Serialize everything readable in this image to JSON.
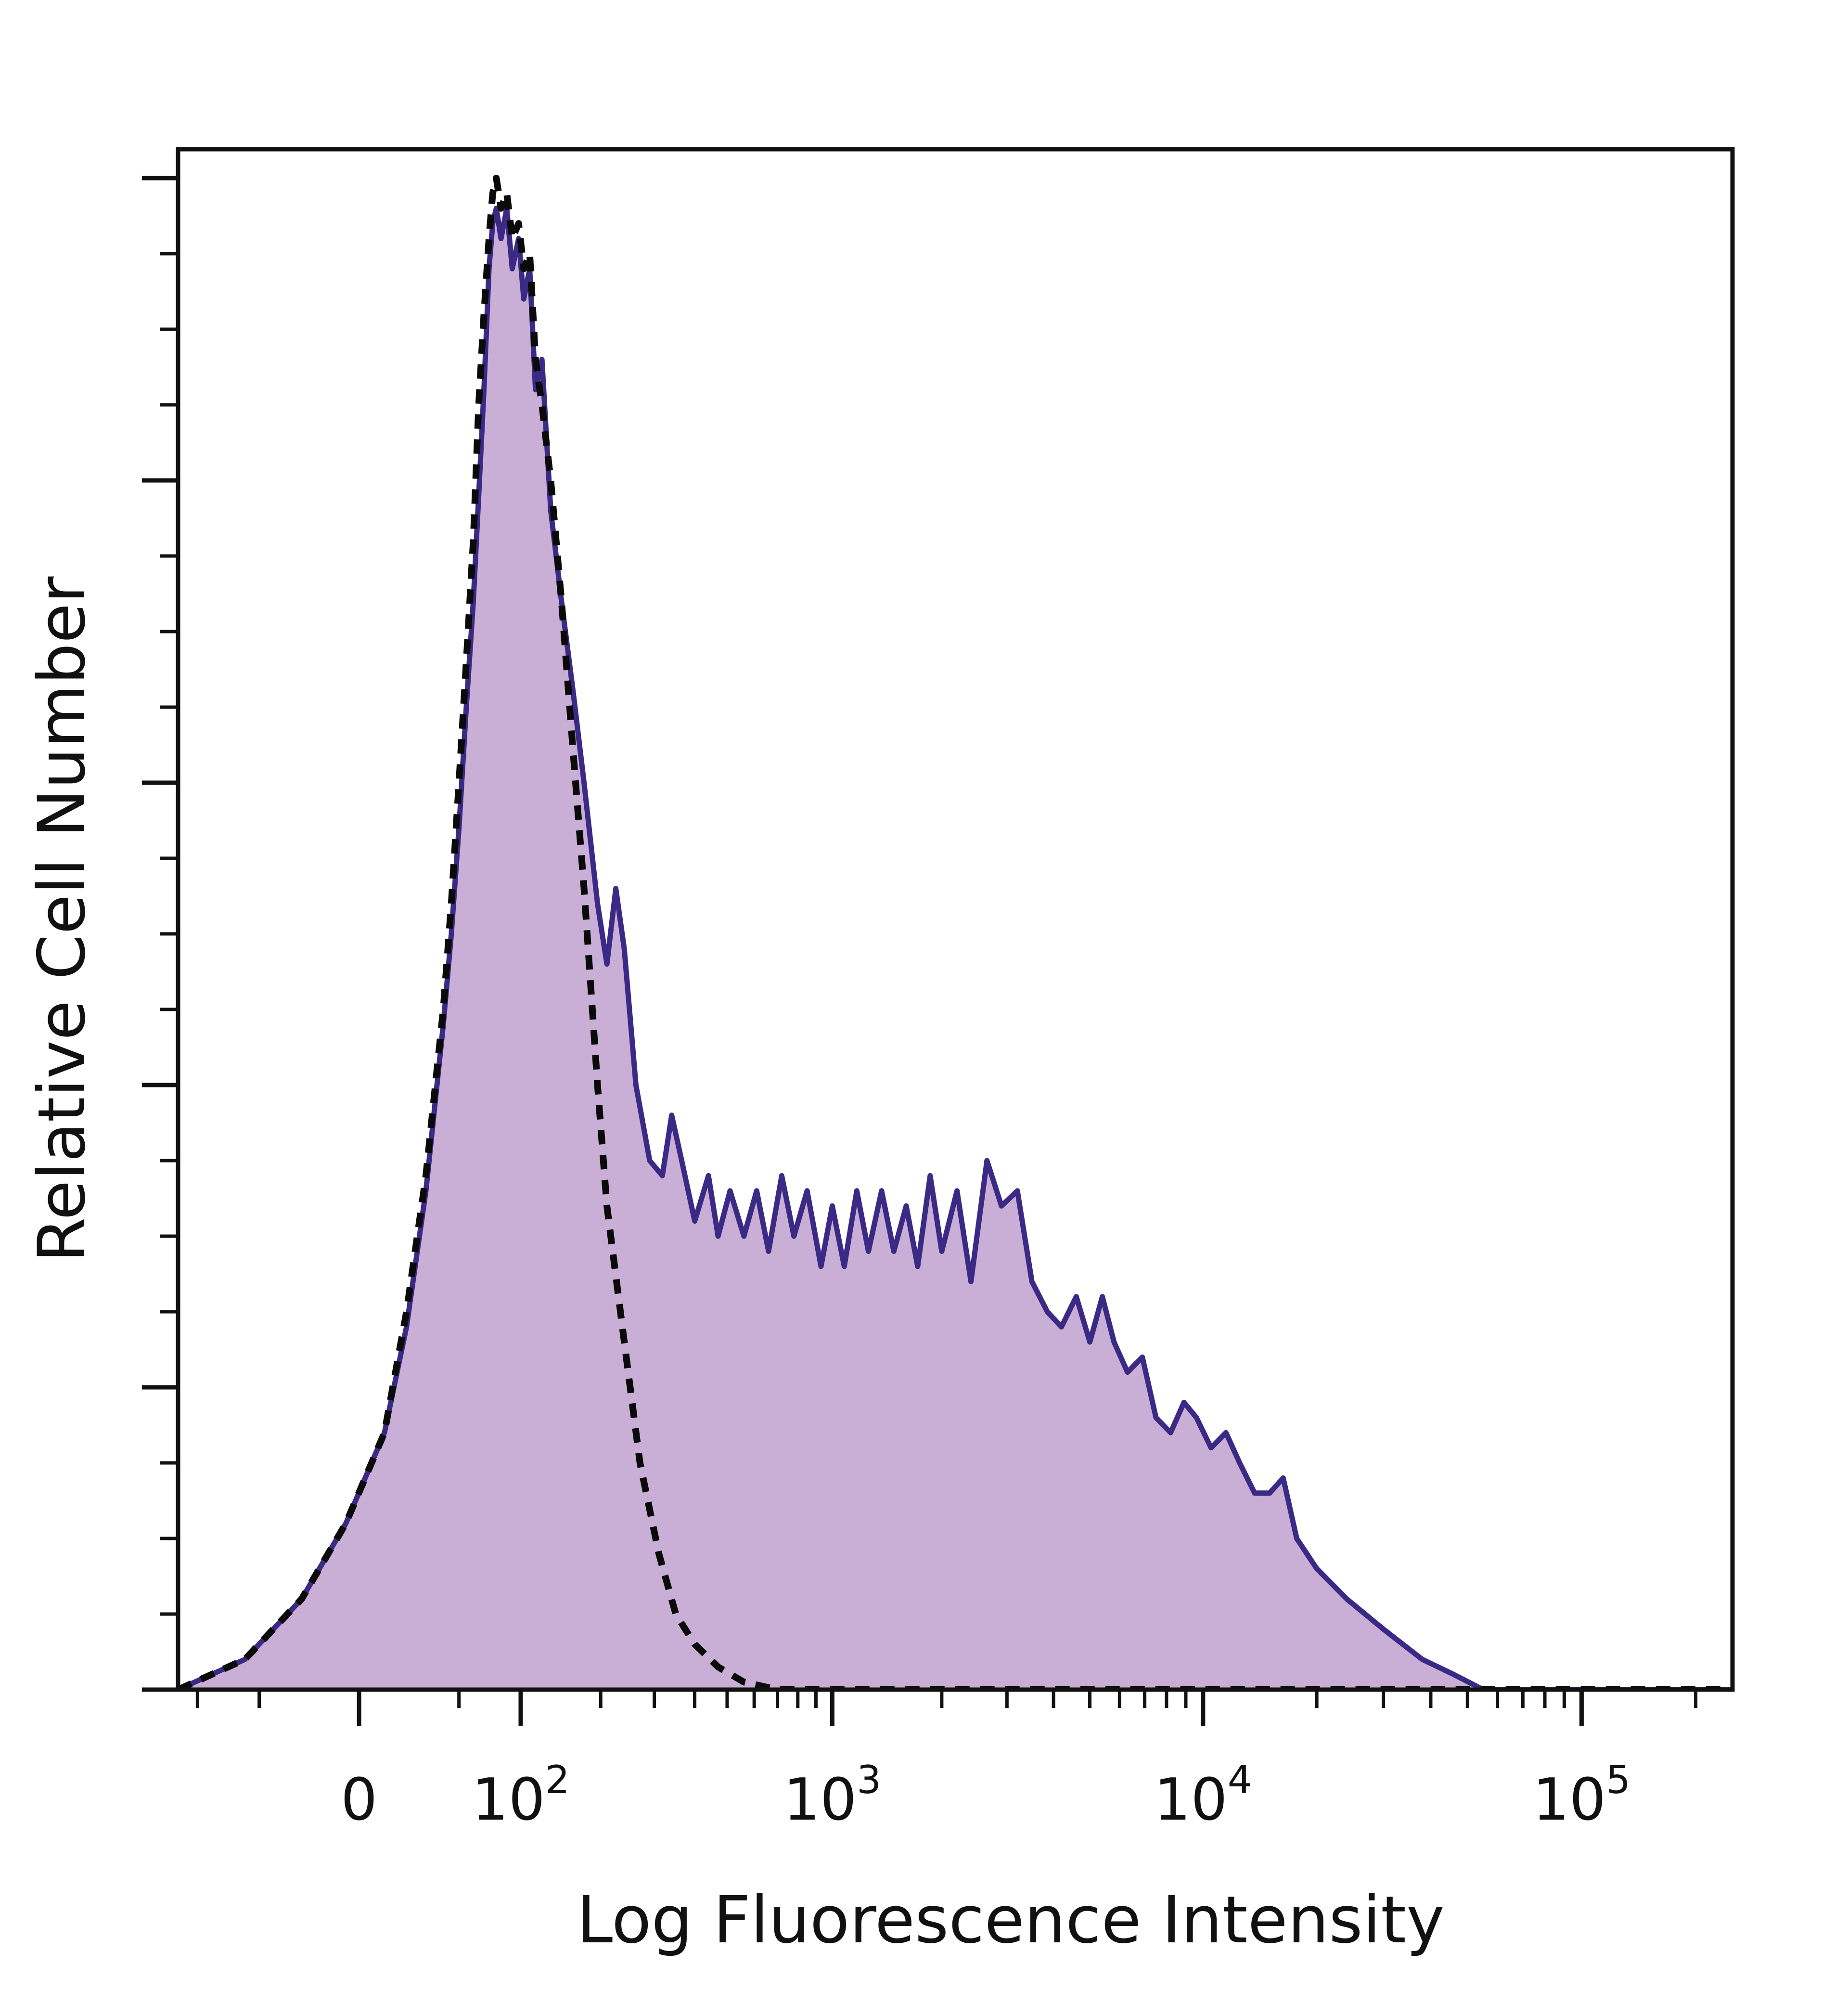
{
  "chart_data": {
    "type": "area",
    "title": "",
    "xlabel": "Log Fluorescence Intensity",
    "ylabel": "Relative Cell Number",
    "x_scale": "biexponential",
    "x_tick_labels": [
      {
        "value": 0,
        "base": "0",
        "exp": ""
      },
      {
        "value": 100,
        "base": "10",
        "exp": "2"
      },
      {
        "value": 1000,
        "base": "10",
        "exp": "3"
      },
      {
        "value": 10000,
        "base": "10",
        "exp": "4"
      },
      {
        "value": 100000,
        "base": "10",
        "exp": "5"
      }
    ],
    "xlim": [
      -120,
      250000
    ],
    "ylim": [
      0,
      100
    ],
    "y_tick_values": [
      0,
      20,
      40,
      60,
      80,
      100
    ],
    "y_tick_labels_shown": false,
    "grid": false,
    "legend": "none",
    "series": [
      {
        "role": "stained",
        "fill": "#c9afd5",
        "stroke": "#3b2a85",
        "line_style": "solid",
        "points": [
          [
            -120,
            0
          ],
          [
            -60,
            2
          ],
          [
            -25,
            6
          ],
          [
            -5,
            11
          ],
          [
            10,
            17
          ],
          [
            20,
            24
          ],
          [
            30,
            33
          ],
          [
            40,
            44
          ],
          [
            45,
            50
          ],
          [
            50,
            57
          ],
          [
            55,
            65
          ],
          [
            60,
            72
          ],
          [
            64,
            79
          ],
          [
            68,
            86
          ],
          [
            72,
            94
          ],
          [
            75,
            97
          ],
          [
            78,
            98
          ],
          [
            82,
            96
          ],
          [
            87,
            98
          ],
          [
            92,
            94
          ],
          [
            98,
            96
          ],
          [
            103,
            92
          ],
          [
            109,
            94
          ],
          [
            115,
            86
          ],
          [
            122,
            88
          ],
          [
            132,
            78
          ],
          [
            145,
            72
          ],
          [
            160,
            66
          ],
          [
            175,
            60
          ],
          [
            195,
            52
          ],
          [
            210,
            48
          ],
          [
            225,
            53
          ],
          [
            240,
            49
          ],
          [
            262,
            40
          ],
          [
            290,
            35
          ],
          [
            318,
            34
          ],
          [
            340,
            38
          ],
          [
            365,
            35
          ],
          [
            400,
            31
          ],
          [
            440,
            34
          ],
          [
            470,
            30
          ],
          [
            510,
            33
          ],
          [
            560,
            30
          ],
          [
            610,
            33
          ],
          [
            660,
            29
          ],
          [
            720,
            34
          ],
          [
            780,
            30
          ],
          [
            850,
            33
          ],
          [
            930,
            28
          ],
          [
            1000,
            32
          ],
          [
            1080,
            28
          ],
          [
            1170,
            33
          ],
          [
            1260,
            29
          ],
          [
            1370,
            33
          ],
          [
            1480,
            29
          ],
          [
            1600,
            32
          ],
          [
            1720,
            28
          ],
          [
            1860,
            34
          ],
          [
            2000,
            29
          ],
          [
            2200,
            33
          ],
          [
            2400,
            27
          ],
          [
            2650,
            35
          ],
          [
            2900,
            32
          ],
          [
            3200,
            33
          ],
          [
            3500,
            27
          ],
          [
            3850,
            25
          ],
          [
            4200,
            24
          ],
          [
            4600,
            26
          ],
          [
            5000,
            23
          ],
          [
            5400,
            26
          ],
          [
            5800,
            23
          ],
          [
            6300,
            21
          ],
          [
            6900,
            22
          ],
          [
            7500,
            18
          ],
          [
            8200,
            17
          ],
          [
            8900,
            19
          ],
          [
            9600,
            18
          ],
          [
            10500,
            16
          ],
          [
            11500,
            17
          ],
          [
            12500,
            15
          ],
          [
            13700,
            13
          ],
          [
            15000,
            13
          ],
          [
            16300,
            14
          ],
          [
            17700,
            10
          ],
          [
            20000,
            8
          ],
          [
            24000,
            6
          ],
          [
            30000,
            4
          ],
          [
            38000,
            2
          ],
          [
            46000,
            1
          ],
          [
            55000,
            0
          ],
          [
            250000,
            0
          ]
        ]
      },
      {
        "role": "control",
        "fill": "none",
        "stroke": "#0a0a0a",
        "line_style": "dashed",
        "points": [
          [
            -120,
            0
          ],
          [
            -60,
            2
          ],
          [
            -25,
            6
          ],
          [
            -5,
            11
          ],
          [
            10,
            17
          ],
          [
            20,
            25
          ],
          [
            30,
            34
          ],
          [
            40,
            45
          ],
          [
            45,
            52
          ],
          [
            50,
            60
          ],
          [
            55,
            68
          ],
          [
            60,
            76
          ],
          [
            64,
            85
          ],
          [
            68,
            91
          ],
          [
            72,
            96
          ],
          [
            75,
            99
          ],
          [
            78,
            100
          ],
          [
            82,
            98
          ],
          [
            87,
            99
          ],
          [
            92,
            96
          ],
          [
            98,
            97
          ],
          [
            103,
            94
          ],
          [
            109,
            95
          ],
          [
            115,
            88
          ],
          [
            122,
            85
          ],
          [
            132,
            80
          ],
          [
            145,
            72
          ],
          [
            160,
            62
          ],
          [
            175,
            53
          ],
          [
            195,
            40
          ],
          [
            210,
            32
          ],
          [
            240,
            23
          ],
          [
            270,
            15
          ],
          [
            310,
            9
          ],
          [
            350,
            5
          ],
          [
            400,
            3
          ],
          [
            470,
            1.5
          ],
          [
            560,
            0.5
          ],
          [
            700,
            0
          ],
          [
            250000,
            0
          ]
        ]
      }
    ]
  }
}
